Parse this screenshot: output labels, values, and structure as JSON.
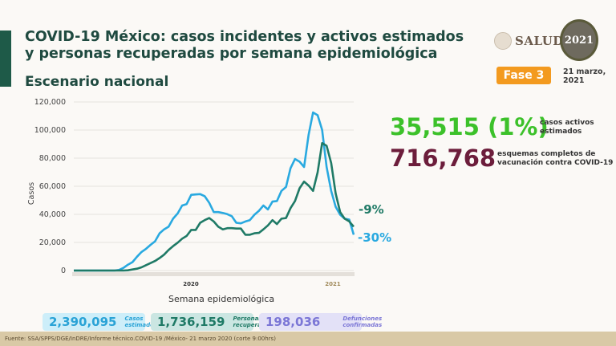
{
  "header": {
    "title": "COVID-19 México: casos incidentes y activos estimados y personas recuperadas por semana epidemiológica",
    "subtitle": "Escenario nacional",
    "logo_text": "SALUD",
    "logo2021_text": "2021",
    "phase": "Fase 3",
    "date": "21 marzo, 2021"
  },
  "highlights": {
    "active_value": "35,515 (1%)",
    "active_label": "casos activos estimados",
    "vaccine_value": "716,768",
    "vaccine_label": "esquemas completos de vacunación contra COVID-19"
  },
  "summary": [
    {
      "value": "2,390,095",
      "label": "Casos estimados"
    },
    {
      "value": "1,736,159",
      "label": "Personas recuperadas"
    },
    {
      "value": "198,036",
      "label": "Defunciones confirmadas"
    }
  ],
  "footer": "Fuente: SSA/SPPS/DGE/InDRE/Informe técnico.COVID-19 /México- 21 marzo 2020 (corte 9:00hrs)",
  "colors": {
    "incident": "#29a9e0",
    "active": "#1f7a66",
    "green": "#3cc12a",
    "maroon": "#6c1d3b",
    "phase": "#f39a1f"
  },
  "chart_data": {
    "type": "line",
    "xlabel": "Semana epidemiológica",
    "ylabel": "Casos",
    "ylim": [
      0,
      120000
    ],
    "yticks": [
      "0",
      "20,000",
      "40,000",
      "60,000",
      "80,000",
      "100,000",
      "120,000"
    ],
    "year_labels": [
      "2020",
      "2021"
    ],
    "grid": true,
    "series": [
      {
        "values": [
          0,
          0,
          0,
          0,
          0,
          0,
          0,
          0,
          0,
          0,
          400,
          1900,
          4200,
          6000,
          9800,
          13200,
          15500,
          18300,
          20800,
          26500,
          29300,
          31200,
          36900,
          40600,
          46300,
          47300,
          53900,
          54200,
          54400,
          52900,
          48200,
          41600,
          41600,
          41000,
          40100,
          38700,
          34000,
          33600,
          34900,
          35900,
          39700,
          42500,
          46300,
          43500,
          49100,
          49500,
          56700,
          59500,
          72800,
          79400,
          77500,
          73700,
          96400,
          112500,
          110600,
          100200,
          73700,
          56700,
          45400,
          39700,
          36900,
          36300,
          25500
        ],
        "end_label": "-30%"
      },
      {
        "values": [
          0,
          0,
          0,
          0,
          0,
          0,
          0,
          0,
          0,
          0,
          0,
          0,
          200,
          800,
          1300,
          2300,
          3800,
          5300,
          6800,
          8900,
          11300,
          14600,
          17400,
          19800,
          22700,
          24600,
          28900,
          28900,
          34000,
          35900,
          37400,
          34900,
          31200,
          29300,
          30200,
          30200,
          29900,
          29900,
          25500,
          25500,
          26500,
          26800,
          29300,
          32100,
          35900,
          33100,
          36900,
          37400,
          44400,
          49500,
          58600,
          63300,
          60500,
          56700,
          69900,
          90700,
          88800,
          76500,
          54800,
          41600,
          36900,
          35000,
          31200
        ],
        "end_label": "-9%"
      }
    ]
  }
}
